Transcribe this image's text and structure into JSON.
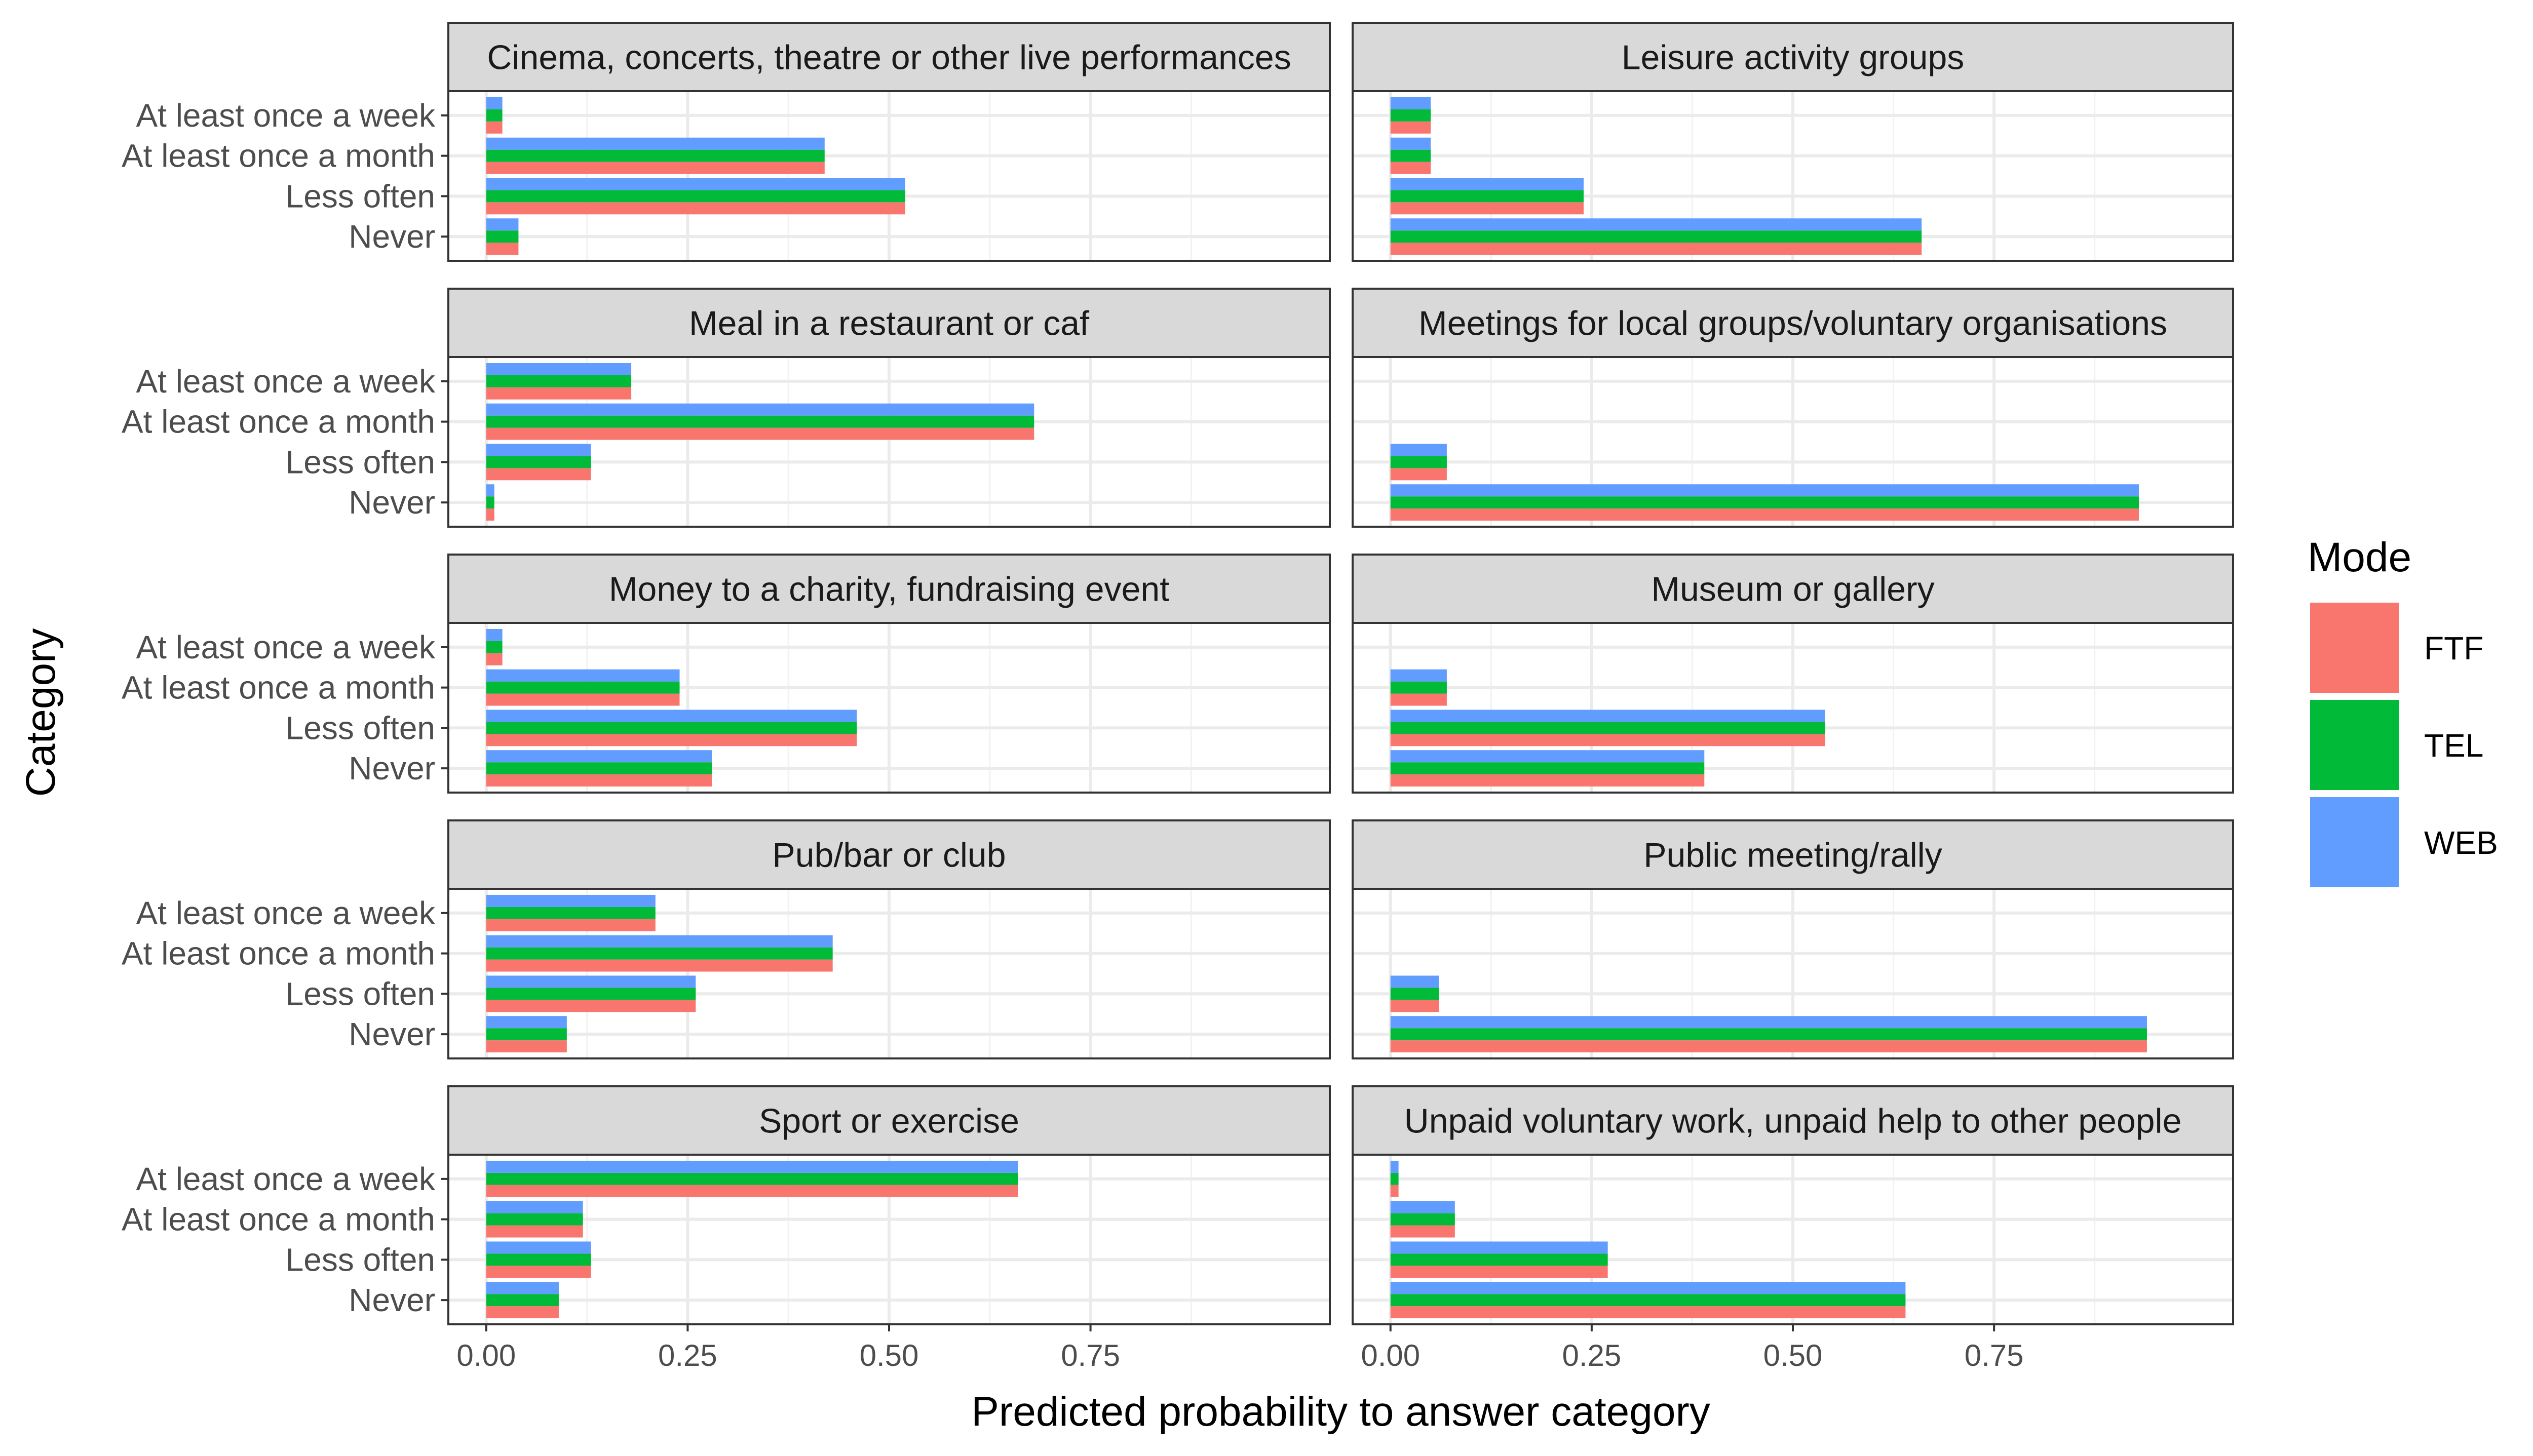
{
  "chart_data": {
    "type": "bar",
    "orientation": "horizontal",
    "facet_layout": "5 rows x 2 columns",
    "xlabel": "Predicted probability to answer category",
    "ylabel": "Category",
    "xlim": [
      0,
      1
    ],
    "x_ticks": [
      "0.00",
      "0.25",
      "0.50",
      "0.75"
    ],
    "x_tick_values": [
      0,
      0.25,
      0.5,
      0.75
    ],
    "grid": true,
    "categories": [
      "At least once a week",
      "At least once a month",
      "Less often",
      "Never"
    ],
    "legend": {
      "title": "Mode",
      "position": "right",
      "entries": [
        {
          "name": "FTF",
          "color": "#F8766D"
        },
        {
          "name": "TEL",
          "color": "#00BA38"
        },
        {
          "name": "WEB",
          "color": "#619CFF"
        }
      ]
    },
    "panels": [
      {
        "title": "Cinema, concerts, theatre or other live performances",
        "series": [
          {
            "name": "FTF",
            "values": [
              0.02,
              0.42,
              0.52,
              0.04
            ]
          },
          {
            "name": "TEL",
            "values": [
              0.02,
              0.42,
              0.52,
              0.04
            ]
          },
          {
            "name": "WEB",
            "values": [
              0.02,
              0.42,
              0.52,
              0.04
            ]
          }
        ]
      },
      {
        "title": "Leisure activity groups",
        "series": [
          {
            "name": "FTF",
            "values": [
              0.05,
              0.05,
              0.24,
              0.66
            ]
          },
          {
            "name": "TEL",
            "values": [
              0.05,
              0.05,
              0.24,
              0.66
            ]
          },
          {
            "name": "WEB",
            "values": [
              0.05,
              0.05,
              0.24,
              0.66
            ]
          }
        ]
      },
      {
        "title": "Meal in a restaurant or caf",
        "series": [
          {
            "name": "FTF",
            "values": [
              0.18,
              0.68,
              0.13,
              0.01
            ]
          },
          {
            "name": "TEL",
            "values": [
              0.18,
              0.68,
              0.13,
              0.01
            ]
          },
          {
            "name": "WEB",
            "values": [
              0.18,
              0.68,
              0.13,
              0.01
            ]
          }
        ]
      },
      {
        "title": "Meetings for local groups/voluntary organisations",
        "series": [
          {
            "name": "FTF",
            "values": [
              0.0,
              0.0,
              0.07,
              0.93
            ]
          },
          {
            "name": "TEL",
            "values": [
              0.0,
              0.0,
              0.07,
              0.93
            ]
          },
          {
            "name": "WEB",
            "values": [
              0.0,
              0.0,
              0.07,
              0.93
            ]
          }
        ]
      },
      {
        "title": "Money to a charity, fundraising event",
        "series": [
          {
            "name": "FTF",
            "values": [
              0.02,
              0.24,
              0.46,
              0.28
            ]
          },
          {
            "name": "TEL",
            "values": [
              0.02,
              0.24,
              0.46,
              0.28
            ]
          },
          {
            "name": "WEB",
            "values": [
              0.02,
              0.24,
              0.46,
              0.28
            ]
          }
        ]
      },
      {
        "title": "Museum or gallery",
        "series": [
          {
            "name": "FTF",
            "values": [
              0.0,
              0.07,
              0.54,
              0.39
            ]
          },
          {
            "name": "TEL",
            "values": [
              0.0,
              0.07,
              0.54,
              0.39
            ]
          },
          {
            "name": "WEB",
            "values": [
              0.0,
              0.07,
              0.54,
              0.39
            ]
          }
        ]
      },
      {
        "title": "Pub/bar or club",
        "series": [
          {
            "name": "FTF",
            "values": [
              0.21,
              0.43,
              0.26,
              0.1
            ]
          },
          {
            "name": "TEL",
            "values": [
              0.21,
              0.43,
              0.26,
              0.1
            ]
          },
          {
            "name": "WEB",
            "values": [
              0.21,
              0.43,
              0.26,
              0.1
            ]
          }
        ]
      },
      {
        "title": "Public meeting/rally",
        "series": [
          {
            "name": "FTF",
            "values": [
              0.0,
              0.0,
              0.06,
              0.94
            ]
          },
          {
            "name": "TEL",
            "values": [
              0.0,
              0.0,
              0.06,
              0.94
            ]
          },
          {
            "name": "WEB",
            "values": [
              0.0,
              0.0,
              0.06,
              0.94
            ]
          }
        ]
      },
      {
        "title": "Sport or exercise",
        "series": [
          {
            "name": "FTF",
            "values": [
              0.66,
              0.12,
              0.13,
              0.09
            ]
          },
          {
            "name": "TEL",
            "values": [
              0.66,
              0.12,
              0.13,
              0.09
            ]
          },
          {
            "name": "WEB",
            "values": [
              0.66,
              0.12,
              0.13,
              0.09
            ]
          }
        ]
      },
      {
        "title": "Unpaid voluntary work, unpaid help to other people",
        "series": [
          {
            "name": "FTF",
            "values": [
              0.01,
              0.08,
              0.27,
              0.64
            ]
          },
          {
            "name": "TEL",
            "values": [
              0.01,
              0.08,
              0.27,
              0.64
            ]
          },
          {
            "name": "WEB",
            "values": [
              0.01,
              0.08,
              0.27,
              0.64
            ]
          }
        ]
      }
    ]
  }
}
